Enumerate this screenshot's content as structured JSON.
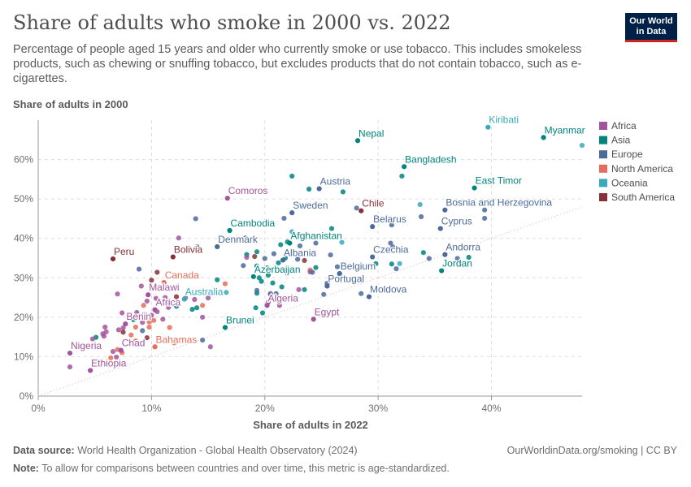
{
  "header": {
    "title": "Share of adults who smoke in 2000 vs. 2022",
    "subtitle": "Percentage of people aged 15 years and older who currently smoke or use tobacco. This includes smokeless products, such as chewing or snuffing tobacco, but excludes products that do not contain tobacco, such as e-cigarettes.",
    "logo_line1": "Our World",
    "logo_line2": "in Data"
  },
  "footer": {
    "source_label": "Data source:",
    "source_text": "World Health Organization - Global Health Observatory (2024)",
    "note_label": "Note:",
    "note_text": "To allow for comparisons between countries and over time, this metric is age-standardized.",
    "link": "OurWorldinData.org/smoking | CC BY"
  },
  "colors": {
    "Africa": "#a2559c",
    "Asia": "#00847e",
    "Europe": "#4c6a9c",
    "North America": "#e56e5a",
    "Oceania": "#38aaba",
    "South America": "#883039"
  },
  "chart_data": {
    "type": "scatter",
    "xlabel": "Share of adults in 2022",
    "ylabel": "Share of adults in 2000",
    "xlim": [
      0,
      48
    ],
    "ylim": [
      0,
      70
    ],
    "xticks": [
      0,
      10,
      20,
      30,
      40
    ],
    "yticks": [
      0,
      10,
      20,
      30,
      40,
      50,
      60
    ],
    "tick_suffix": "%",
    "grid": true,
    "legend_position": "right",
    "legend": [
      "Africa",
      "Asia",
      "Europe",
      "North America",
      "Oceania",
      "South America"
    ],
    "labeled_points": [
      {
        "label": "Nepal",
        "region": "Asia",
        "x": 28.2,
        "y": 64.8
      },
      {
        "label": "Kiribati",
        "region": "Oceania",
        "x": 39.7,
        "y": 68.2
      },
      {
        "label": "Myanmar",
        "region": "Asia",
        "x": 44.6,
        "y": 65.6
      },
      {
        "label": "Bangladesh",
        "region": "Asia",
        "x": 32.3,
        "y": 58.2
      },
      {
        "label": "East Timor",
        "region": "Asia",
        "x": 38.5,
        "y": 52.8
      },
      {
        "label": "Austria",
        "region": "Europe",
        "x": 24.8,
        "y": 52.6
      },
      {
        "label": "Comoros",
        "region": "Africa",
        "x": 16.7,
        "y": 50.2
      },
      {
        "label": "Chile",
        "region": "South America",
        "x": 28.5,
        "y": 47.0
      },
      {
        "label": "Sweden",
        "region": "Europe",
        "x": 22.4,
        "y": 46.5
      },
      {
        "label": "Bosnia and Herzegovina",
        "region": "Europe",
        "x": 35.9,
        "y": 47.2
      },
      {
        "label": "Cambodia",
        "region": "Asia",
        "x": 16.9,
        "y": 42.0
      },
      {
        "label": "Belarus",
        "region": "Europe",
        "x": 29.5,
        "y": 43.0
      },
      {
        "label": "Cyprus",
        "region": "Europe",
        "x": 35.5,
        "y": 42.5
      },
      {
        "label": "Afghanistan",
        "region": "Asia",
        "x": 22.2,
        "y": 38.8
      },
      {
        "label": "Denmark",
        "region": "Europe",
        "x": 15.8,
        "y": 37.9
      },
      {
        "label": "Bolivia",
        "region": "South America",
        "x": 11.9,
        "y": 35.3
      },
      {
        "label": "Peru",
        "region": "South America",
        "x": 6.6,
        "y": 34.8
      },
      {
        "label": "Albania",
        "region": "Europe",
        "x": 21.6,
        "y": 34.5
      },
      {
        "label": "Andorra",
        "region": "Europe",
        "x": 35.9,
        "y": 35.9
      },
      {
        "label": "Czechia",
        "region": "Europe",
        "x": 29.5,
        "y": 35.3
      },
      {
        "label": "Canada",
        "region": "North America",
        "x": 11.1,
        "y": 28.8
      },
      {
        "label": "Jordan",
        "region": "Asia",
        "x": 35.6,
        "y": 31.8
      },
      {
        "label": "Belgium",
        "region": "Europe",
        "x": 26.6,
        "y": 31.1
      },
      {
        "label": "Azerbaijan",
        "region": "Asia",
        "x": 19.0,
        "y": 30.3
      },
      {
        "label": "Portugal",
        "region": "Europe",
        "x": 25.5,
        "y": 27.9
      },
      {
        "label": "Moldova",
        "region": "Europe",
        "x": 29.2,
        "y": 25.2
      },
      {
        "label": "Malawi",
        "region": "Africa",
        "x": 9.7,
        "y": 25.7
      },
      {
        "label": "Australia",
        "region": "Oceania",
        "x": 12.9,
        "y": 24.6
      },
      {
        "label": "Algeria",
        "region": "Africa",
        "x": 20.2,
        "y": 23.0
      },
      {
        "label": "Africa",
        "region": "Africa",
        "x": 10.3,
        "y": 21.9
      },
      {
        "label": "Egypt",
        "region": "Africa",
        "x": 24.3,
        "y": 19.5
      },
      {
        "label": "Benin",
        "region": "Africa",
        "x": 7.7,
        "y": 18.3
      },
      {
        "label": "Brunei",
        "region": "Asia",
        "x": 16.5,
        "y": 17.4
      },
      {
        "label": "Bahamas",
        "region": "North America",
        "x": 10.3,
        "y": 12.5
      },
      {
        "label": "Chad",
        "region": "Africa",
        "x": 7.3,
        "y": 11.6
      },
      {
        "label": "Nigeria",
        "region": "Africa",
        "x": 2.8,
        "y": 10.9
      },
      {
        "label": "Ethiopia",
        "region": "Africa",
        "x": 4.6,
        "y": 6.5
      }
    ],
    "points": [
      {
        "region": "Oceania",
        "x": 48.0,
        "y": 63.6
      },
      {
        "region": "Asia",
        "x": 32.1,
        "y": 55.8
      },
      {
        "region": "Asia",
        "x": 23.9,
        "y": 52.5
      },
      {
        "region": "Asia",
        "x": 22.4,
        "y": 55.8
      },
      {
        "region": "Asia",
        "x": 26.9,
        "y": 51.8
      },
      {
        "region": "Europe",
        "x": 28.1,
        "y": 47.7
      },
      {
        "region": "Oceania",
        "x": 33.7,
        "y": 48.6
      },
      {
        "region": "Europe",
        "x": 39.4,
        "y": 47.2
      },
      {
        "region": "Europe",
        "x": 33.8,
        "y": 45.5
      },
      {
        "region": "Europe",
        "x": 21.7,
        "y": 45.1
      },
      {
        "region": "Europe",
        "x": 31.2,
        "y": 43.4
      },
      {
        "region": "Europe",
        "x": 39.4,
        "y": 45.1
      },
      {
        "region": "Europe",
        "x": 13.9,
        "y": 45.0
      },
      {
        "region": "Asia",
        "x": 25.9,
        "y": 42.5
      },
      {
        "region": "Oceania",
        "x": 22.4,
        "y": 41.7
      },
      {
        "region": "Europe",
        "x": 18.3,
        "y": 40.1
      },
      {
        "region": "Africa",
        "x": 12.4,
        "y": 40.1
      },
      {
        "region": "Europe",
        "x": 14.0,
        "y": 37.9
      },
      {
        "region": "Oceania",
        "x": 26.8,
        "y": 39.0
      },
      {
        "region": "Europe",
        "x": 24.5,
        "y": 38.8
      },
      {
        "region": "Asia",
        "x": 22.0,
        "y": 39.1
      },
      {
        "region": "Asia",
        "x": 21.4,
        "y": 38.4
      },
      {
        "region": "Europe",
        "x": 31.1,
        "y": 38.8
      },
      {
        "region": "Europe",
        "x": 23.1,
        "y": 38.1
      },
      {
        "region": "Asia",
        "x": 19.3,
        "y": 36.6
      },
      {
        "region": "Asia",
        "x": 18.4,
        "y": 35.9
      },
      {
        "region": "Europe",
        "x": 20.8,
        "y": 36.1
      },
      {
        "region": "Asia",
        "x": 34.0,
        "y": 36.4
      },
      {
        "region": "Asia",
        "x": 38.0,
        "y": 35.2
      },
      {
        "region": "Europe",
        "x": 37.0,
        "y": 34.9
      },
      {
        "region": "Europe",
        "x": 34.5,
        "y": 34.9
      },
      {
        "region": "Europe",
        "x": 31.3,
        "y": 37.8
      },
      {
        "region": "Europe",
        "x": 25.8,
        "y": 35.8
      },
      {
        "region": "Europe",
        "x": 20.0,
        "y": 34.9
      },
      {
        "region": "Africa",
        "x": 18.4,
        "y": 35.2
      },
      {
        "region": "South America",
        "x": 19.1,
        "y": 35.4
      },
      {
        "region": "Asia",
        "x": 21.8,
        "y": 35.0
      },
      {
        "region": "Oceania",
        "x": 31.9,
        "y": 33.6
      },
      {
        "region": "Asia",
        "x": 31.2,
        "y": 33.5
      },
      {
        "region": "Asia",
        "x": 29.8,
        "y": 33.6
      },
      {
        "region": "South America",
        "x": 23.5,
        "y": 34.4
      },
      {
        "region": "Europe",
        "x": 22.9,
        "y": 34.7
      },
      {
        "region": "Asia",
        "x": 21.2,
        "y": 33.8
      },
      {
        "region": "Asia",
        "x": 19.3,
        "y": 33.0
      },
      {
        "region": "Europe",
        "x": 18.1,
        "y": 33.1
      },
      {
        "region": "Asia",
        "x": 20.2,
        "y": 32.5
      },
      {
        "region": "Europe",
        "x": 26.4,
        "y": 32.8
      },
      {
        "region": "Europe",
        "x": 31.6,
        "y": 32.3
      },
      {
        "region": "Asia",
        "x": 24.5,
        "y": 32.6
      },
      {
        "region": "North America",
        "x": 24.0,
        "y": 32.0
      },
      {
        "region": "Africa",
        "x": 24.0,
        "y": 31.5
      },
      {
        "region": "Asia",
        "x": 26.6,
        "y": 31.0
      },
      {
        "region": "Africa",
        "x": 22.0,
        "y": 31.1
      },
      {
        "region": "Europe",
        "x": 24.2,
        "y": 31.4
      },
      {
        "region": "South America",
        "x": 10.5,
        "y": 31.4
      },
      {
        "region": "Europe",
        "x": 8.9,
        "y": 32.2
      },
      {
        "region": "Asia",
        "x": 20.3,
        "y": 30.7
      },
      {
        "region": "Asia",
        "x": 19.5,
        "y": 30.0
      },
      {
        "region": "Asia",
        "x": 19.7,
        "y": 29.1
      },
      {
        "region": "Asia",
        "x": 15.8,
        "y": 29.5
      },
      {
        "region": "South America",
        "x": 10.0,
        "y": 29.4
      },
      {
        "region": "North America",
        "x": 16.5,
        "y": 28.5
      },
      {
        "region": "Asia",
        "x": 20.7,
        "y": 28.7
      },
      {
        "region": "Asia",
        "x": 21.5,
        "y": 27.7
      },
      {
        "region": "Asia",
        "x": 23.5,
        "y": 27.0
      },
      {
        "region": "Africa",
        "x": 20.5,
        "y": 26.0
      },
      {
        "region": "Africa",
        "x": 23.0,
        "y": 27.0
      },
      {
        "region": "Europe",
        "x": 25.5,
        "y": 28.6
      },
      {
        "region": "Africa",
        "x": 9.1,
        "y": 27.9
      },
      {
        "region": "Oceania",
        "x": 16.6,
        "y": 26.3
      },
      {
        "region": "Asia",
        "x": 19.3,
        "y": 26.1
      },
      {
        "region": "Europe",
        "x": 19.3,
        "y": 26.8
      },
      {
        "region": "Europe",
        "x": 20.5,
        "y": 25.8
      },
      {
        "region": "Europe",
        "x": 25.2,
        "y": 25.8
      },
      {
        "region": "Europe",
        "x": 21.0,
        "y": 26.0
      },
      {
        "region": "Europe",
        "x": 28.5,
        "y": 26.0
      },
      {
        "region": "Africa",
        "x": 7.0,
        "y": 25.9
      },
      {
        "region": "South America",
        "x": 12.2,
        "y": 25.2
      },
      {
        "region": "Africa",
        "x": 13.0,
        "y": 24.9
      },
      {
        "region": "Africa",
        "x": 10.4,
        "y": 24.8
      },
      {
        "region": "Africa",
        "x": 11.2,
        "y": 25.0
      },
      {
        "region": "Africa",
        "x": 9.6,
        "y": 24.1
      },
      {
        "region": "North America",
        "x": 9.3,
        "y": 23.0
      },
      {
        "region": "Africa",
        "x": 13.8,
        "y": 24.5
      },
      {
        "region": "South America",
        "x": 11.5,
        "y": 23.8
      },
      {
        "region": "Africa",
        "x": 15.0,
        "y": 24.9
      },
      {
        "region": "Africa",
        "x": 20.3,
        "y": 23.8
      },
      {
        "region": "Africa",
        "x": 21.3,
        "y": 23.0
      },
      {
        "region": "Asia",
        "x": 19.2,
        "y": 22.4
      },
      {
        "region": "Asia",
        "x": 12.2,
        "y": 22.8
      },
      {
        "region": "North America",
        "x": 14.5,
        "y": 23.0
      },
      {
        "region": "Africa",
        "x": 11.5,
        "y": 22.5
      },
      {
        "region": "Africa",
        "x": 10.5,
        "y": 21.4
      },
      {
        "region": "Asia",
        "x": 13.6,
        "y": 22.0
      },
      {
        "region": "Asia",
        "x": 14.0,
        "y": 22.4
      },
      {
        "region": "Africa",
        "x": 8.7,
        "y": 21.2
      },
      {
        "region": "Africa",
        "x": 7.4,
        "y": 21.1
      },
      {
        "region": "Africa",
        "x": 9.4,
        "y": 20.8
      },
      {
        "region": "Asia",
        "x": 19.8,
        "y": 21.1
      },
      {
        "region": "Africa",
        "x": 10.0,
        "y": 20.5
      },
      {
        "region": "Africa",
        "x": 14.5,
        "y": 20.0
      },
      {
        "region": "North America",
        "x": 10.2,
        "y": 19.2
      },
      {
        "region": "North America",
        "x": 9.8,
        "y": 18.8
      },
      {
        "region": "Asia",
        "x": 8.4,
        "y": 19.4
      },
      {
        "region": "Africa",
        "x": 11.0,
        "y": 19.5
      },
      {
        "region": "Africa",
        "x": 9.2,
        "y": 18.7
      },
      {
        "region": "Africa",
        "x": 7.5,
        "y": 17.3
      },
      {
        "region": "Africa",
        "x": 5.9,
        "y": 17.5
      },
      {
        "region": "Africa",
        "x": 7.1,
        "y": 16.8
      },
      {
        "region": "North America",
        "x": 8.6,
        "y": 17.5
      },
      {
        "region": "North America",
        "x": 9.8,
        "y": 17.5
      },
      {
        "region": "North America",
        "x": 11.6,
        "y": 17.4
      },
      {
        "region": "Europe",
        "x": 9.2,
        "y": 16.6
      },
      {
        "region": "Africa",
        "x": 6.0,
        "y": 16.3
      },
      {
        "region": "Africa",
        "x": 5.7,
        "y": 15.8
      },
      {
        "region": "South America",
        "x": 7.5,
        "y": 16.2
      },
      {
        "region": "Africa",
        "x": 5.8,
        "y": 15.2
      },
      {
        "region": "North America",
        "x": 8.2,
        "y": 15.5
      },
      {
        "region": "Asia",
        "x": 5.1,
        "y": 14.9
      },
      {
        "region": "Africa",
        "x": 4.8,
        "y": 14.5
      },
      {
        "region": "South America",
        "x": 9.6,
        "y": 14.8
      },
      {
        "region": "North America",
        "x": 8.6,
        "y": 14.0
      },
      {
        "region": "Asia",
        "x": 12.0,
        "y": 13.9
      },
      {
        "region": "Europe",
        "x": 14.5,
        "y": 14.2
      },
      {
        "region": "North America",
        "x": 12.0,
        "y": 13.5
      },
      {
        "region": "Africa",
        "x": 15.2,
        "y": 12.5
      },
      {
        "region": "North America",
        "x": 7.0,
        "y": 11.8
      },
      {
        "region": "North America",
        "x": 7.4,
        "y": 11.0
      },
      {
        "region": "Africa",
        "x": 6.6,
        "y": 11.3
      },
      {
        "region": "Africa",
        "x": 6.9,
        "y": 9.9
      },
      {
        "region": "North America",
        "x": 6.4,
        "y": 9.7
      },
      {
        "region": "Africa",
        "x": 2.8,
        "y": 7.4
      }
    ]
  }
}
